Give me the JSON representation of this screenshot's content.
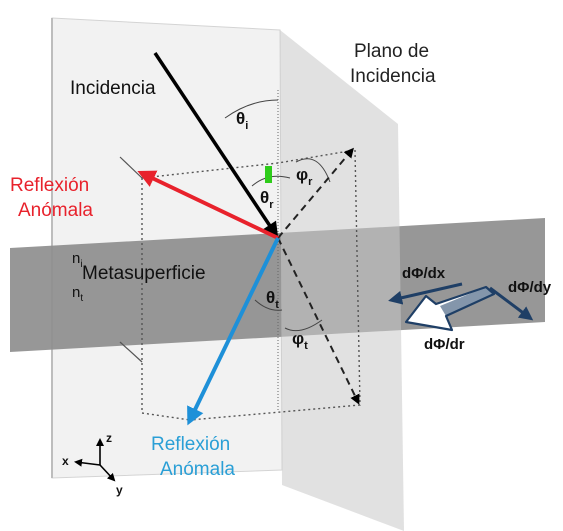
{
  "labels": {
    "incidence_plane": [
      "Plano de",
      "Incidencia"
    ],
    "incidence": "Incidencia",
    "reflection_red": [
      "Reflexión",
      "Anómala"
    ],
    "reflection_blue": [
      "Reflexión",
      "Anómala"
    ],
    "metasurface": "Metasuperficie",
    "n_i": "n",
    "n_i_sub": "i",
    "n_t": "n",
    "n_t_sub": "t",
    "theta_i": "θ",
    "theta_i_sub": "i",
    "theta_r": "θ",
    "theta_r_sub": "r",
    "phi_r": "φ",
    "phi_r_sub": "r",
    "theta_t": "θ",
    "theta_t_sub": "t",
    "phi_t": "φ",
    "phi_t_sub": "t",
    "grad_x": "dΦ/dx",
    "grad_y": "dΦ/dy",
    "grad_r": "dΦ/dr",
    "axis_z": "z",
    "axis_x": "x",
    "axis_y": "y"
  },
  "colors": {
    "incident_ray": "#000000",
    "reflected_ray": "#e8222c",
    "refracted_ray": "#1e90d8",
    "red_text": "#e8222c",
    "blue_text": "#2a9fd6",
    "metasurface": "#8e8e8e",
    "green_marker": "#2ecc1a",
    "gradient_arrow": "#1f3f66"
  }
}
